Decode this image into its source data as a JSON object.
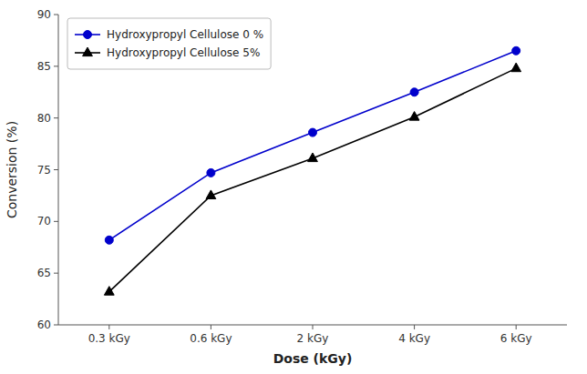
{
  "chart_data": {
    "type": "line",
    "categories": [
      "0.3 kGy",
      "0.6 kGy",
      "2 kGy",
      "4 kGy",
      "6 kGy"
    ],
    "series": [
      {
        "name": "Hydroxypropyl Cellulose 0 %",
        "color": "#0000cc",
        "marker": "circle",
        "values": [
          68.2,
          74.7,
          78.6,
          82.5,
          86.5
        ]
      },
      {
        "name": "Hydroxypropyl Cellulose 5%",
        "color": "#000000",
        "marker": "triangle",
        "values": [
          63.2,
          72.5,
          76.1,
          80.1,
          84.8
        ]
      }
    ],
    "xlabel": "Dose (kGy)",
    "ylabel": "Conversion (%)",
    "ylim": [
      60,
      90
    ],
    "yticks": [
      60,
      65,
      70,
      75,
      80,
      85,
      90
    ],
    "grid": false,
    "legend": "upper left"
  }
}
